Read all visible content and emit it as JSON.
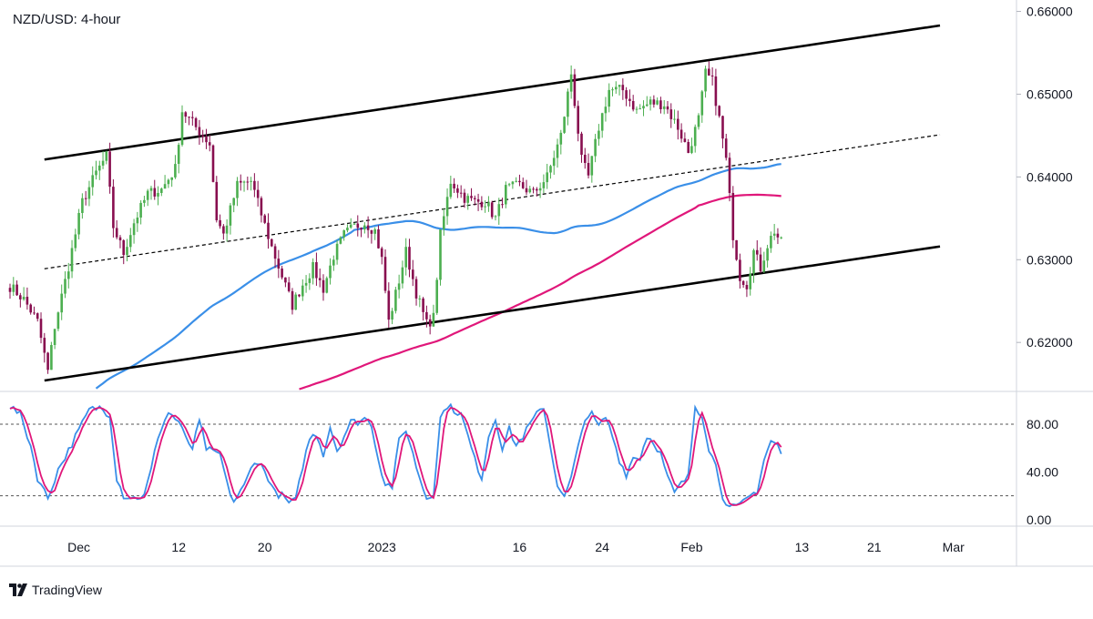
{
  "brand": {
    "name": "TradingView"
  },
  "colors": {
    "up": "#4caf50",
    "down": "#880e4f",
    "ma_fast": "#3a8fe8",
    "ma_slow": "#e0177a",
    "stoch_k": "#3a8fe8",
    "stoch_d": "#e0177a",
    "channel": "#000000"
  },
  "chart_data": [
    {
      "type": "candlestick",
      "title": "NZD/USD: 4-hour",
      "x_ticks": [
        "Dec",
        "12",
        "20",
        "2023",
        "16",
        "24",
        "Feb",
        "13",
        "21",
        "Mar"
      ],
      "y_ticks": [
        "0.66000",
        "0.65000",
        "0.64000",
        "0.63000",
        "0.62000"
      ],
      "ylim": [
        0.6143,
        0.6605
      ],
      "grid": false,
      "overlays": {
        "channel_upper": {
          "style": "solid",
          "from": 0.6421,
          "to": 0.6583
        },
        "channel_mid": {
          "style": "dashed",
          "from": 0.6289,
          "to": 0.6451
        },
        "channel_lower": {
          "style": "solid",
          "from": 0.6154,
          "to": 0.6316
        },
        "ma_fast": {
          "name": "",
          "last": 0.6434
        },
        "ma_slow": {
          "name": "",
          "last": 0.6381
        }
      },
      "price_path": [
        [
          0,
          0.6268
        ],
        [
          4,
          0.6252
        ],
        [
          8,
          0.6225
        ],
        [
          10,
          0.6185
        ],
        [
          11,
          0.6165
        ],
        [
          13,
          0.622
        ],
        [
          17,
          0.6292
        ],
        [
          21,
          0.637
        ],
        [
          25,
          0.6405
        ],
        [
          28,
          0.6425
        ],
        [
          30,
          0.634
        ],
        [
          33,
          0.6308
        ],
        [
          36,
          0.6345
        ],
        [
          40,
          0.638
        ],
        [
          44,
          0.6385
        ],
        [
          48,
          0.641
        ],
        [
          50,
          0.648
        ],
        [
          52,
          0.647
        ],
        [
          55,
          0.6455
        ],
        [
          58,
          0.644
        ],
        [
          60,
          0.635
        ],
        [
          62,
          0.633
        ],
        [
          66,
          0.639
        ],
        [
          70,
          0.6395
        ],
        [
          73,
          0.6355
        ],
        [
          76,
          0.6315
        ],
        [
          79,
          0.628
        ],
        [
          82,
          0.6245
        ],
        [
          85,
          0.627
        ],
        [
          88,
          0.629
        ],
        [
          91,
          0.6265
        ],
        [
          94,
          0.6305
        ],
        [
          97,
          0.633
        ],
        [
          100,
          0.634
        ],
        [
          103,
          0.6345
        ],
        [
          106,
          0.6335
        ],
        [
          108,
          0.63
        ],
        [
          110,
          0.6225
        ],
        [
          113,
          0.6275
        ],
        [
          115,
          0.631
        ],
        [
          118,
          0.626
        ],
        [
          121,
          0.6222
        ],
        [
          123,
          0.623
        ],
        [
          125,
          0.633
        ],
        [
          128,
          0.6395
        ],
        [
          132,
          0.6375
        ],
        [
          135,
          0.637
        ],
        [
          138,
          0.637
        ],
        [
          141,
          0.635
        ],
        [
          144,
          0.6385
        ],
        [
          148,
          0.639
        ],
        [
          152,
          0.638
        ],
        [
          156,
          0.64
        ],
        [
          160,
          0.645
        ],
        [
          163,
          0.6525
        ],
        [
          166,
          0.642
        ],
        [
          168,
          0.64
        ],
        [
          171,
          0.646
        ],
        [
          174,
          0.6505
        ],
        [
          178,
          0.6505
        ],
        [
          182,
          0.648
        ],
        [
          186,
          0.649
        ],
        [
          190,
          0.6488
        ],
        [
          194,
          0.646
        ],
        [
          197,
          0.643
        ],
        [
          200,
          0.647
        ],
        [
          202,
          0.6525
        ],
        [
          204,
          0.6515
        ],
        [
          206,
          0.647
        ],
        [
          208,
          0.642
        ],
        [
          210,
          0.633
        ],
        [
          212,
          0.628
        ],
        [
          214,
          0.627
        ],
        [
          216,
          0.631
        ],
        [
          218,
          0.629
        ],
        [
          220,
          0.6318
        ],
        [
          222,
          0.6335
        ],
        [
          224,
          0.632
        ]
      ],
      "n_candles": 225
    },
    {
      "type": "line",
      "title": "",
      "y_ticks": [
        "80.00",
        "40.00",
        "0.00"
      ],
      "ylim": [
        -4,
        106
      ],
      "overbought": 80,
      "oversold": 20,
      "series": [
        {
          "name": ""
        },
        {
          "name": ""
        }
      ],
      "path": [
        [
          0,
          95
        ],
        [
          3,
          88
        ],
        [
          6,
          62
        ],
        [
          8,
          35
        ],
        [
          11,
          18
        ],
        [
          14,
          42
        ],
        [
          17,
          58
        ],
        [
          20,
          75
        ],
        [
          23,
          92
        ],
        [
          26,
          94
        ],
        [
          29,
          88
        ],
        [
          31,
          35
        ],
        [
          33,
          20
        ],
        [
          36,
          18
        ],
        [
          39,
          20
        ],
        [
          41,
          42
        ],
        [
          43,
          70
        ],
        [
          46,
          90
        ],
        [
          49,
          82
        ],
        [
          51,
          68
        ],
        [
          53,
          60
        ],
        [
          55,
          82
        ],
        [
          57,
          60
        ],
        [
          59,
          56
        ],
        [
          61,
          55
        ],
        [
          63,
          30
        ],
        [
          65,
          15
        ],
        [
          68,
          28
        ],
        [
          71,
          50
        ],
        [
          73,
          45
        ],
        [
          75,
          35
        ],
        [
          77,
          22
        ],
        [
          79,
          20
        ],
        [
          81,
          14
        ],
        [
          83,
          16
        ],
        [
          85,
          45
        ],
        [
          87,
          68
        ],
        [
          89,
          72
        ],
        [
          91,
          55
        ],
        [
          93,
          78
        ],
        [
          95,
          58
        ],
        [
          97,
          70
        ],
        [
          99,
          82
        ],
        [
          101,
          82
        ],
        [
          103,
          85
        ],
        [
          105,
          80
        ],
        [
          107,
          50
        ],
        [
          109,
          30
        ],
        [
          111,
          28
        ],
        [
          113,
          66
        ],
        [
          115,
          76
        ],
        [
          117,
          55
        ],
        [
          119,
          35
        ],
        [
          121,
          18
        ],
        [
          123,
          22
        ],
        [
          125,
          85
        ],
        [
          127,
          96
        ],
        [
          129,
          92
        ],
        [
          131,
          88
        ],
        [
          133,
          70
        ],
        [
          135,
          50
        ],
        [
          137,
          35
        ],
        [
          139,
          70
        ],
        [
          141,
          85
        ],
        [
          143,
          60
        ],
        [
          145,
          76
        ],
        [
          147,
          62
        ],
        [
          149,
          70
        ],
        [
          151,
          80
        ],
        [
          153,
          88
        ],
        [
          155,
          95
        ],
        [
          157,
          60
        ],
        [
          159,
          30
        ],
        [
          161,
          18
        ],
        [
          163,
          35
        ],
        [
          165,
          60
        ],
        [
          167,
          86
        ],
        [
          169,
          88
        ],
        [
          171,
          78
        ],
        [
          173,
          86
        ],
        [
          175,
          70
        ],
        [
          177,
          50
        ],
        [
          179,
          38
        ],
        [
          181,
          52
        ],
        [
          183,
          52
        ],
        [
          185,
          70
        ],
        [
          187,
          65
        ],
        [
          189,
          55
        ],
        [
          191,
          35
        ],
        [
          193,
          22
        ],
        [
          195,
          30
        ],
        [
          197,
          36
        ],
        [
          199,
          95
        ],
        [
          201,
          88
        ],
        [
          203,
          60
        ],
        [
          205,
          45
        ],
        [
          207,
          20
        ],
        [
          209,
          10
        ],
        [
          211,
          10
        ],
        [
          213,
          14
        ],
        [
          215,
          20
        ],
        [
          217,
          24
        ],
        [
          219,
          50
        ],
        [
          221,
          66
        ],
        [
          223,
          62
        ],
        [
          224,
          55
        ]
      ]
    }
  ]
}
